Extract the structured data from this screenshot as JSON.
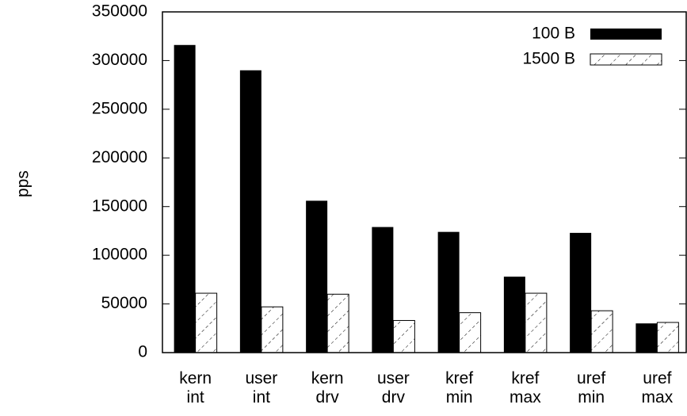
{
  "chart_data": {
    "type": "bar",
    "ylabel": "pps",
    "categories": [
      "kern int",
      "user int",
      "kern drv",
      "user drv",
      "kref min",
      "kref max",
      "uref min",
      "uref max"
    ],
    "series": [
      {
        "name": "100 B",
        "color": "#000000",
        "fill": "solid",
        "values": [
          316000,
          290000,
          156000,
          129000,
          124000,
          78000,
          123000,
          30000
        ]
      },
      {
        "name": "1500 B",
        "color": "#000000",
        "fill": "hatch",
        "values": [
          61000,
          47000,
          60000,
          33000,
          41000,
          61000,
          43000,
          31000
        ]
      }
    ],
    "ylim": [
      0,
      350000
    ],
    "yticks": [
      0,
      50000,
      100000,
      150000,
      200000,
      250000,
      300000,
      350000
    ],
    "legend": "top-right"
  }
}
